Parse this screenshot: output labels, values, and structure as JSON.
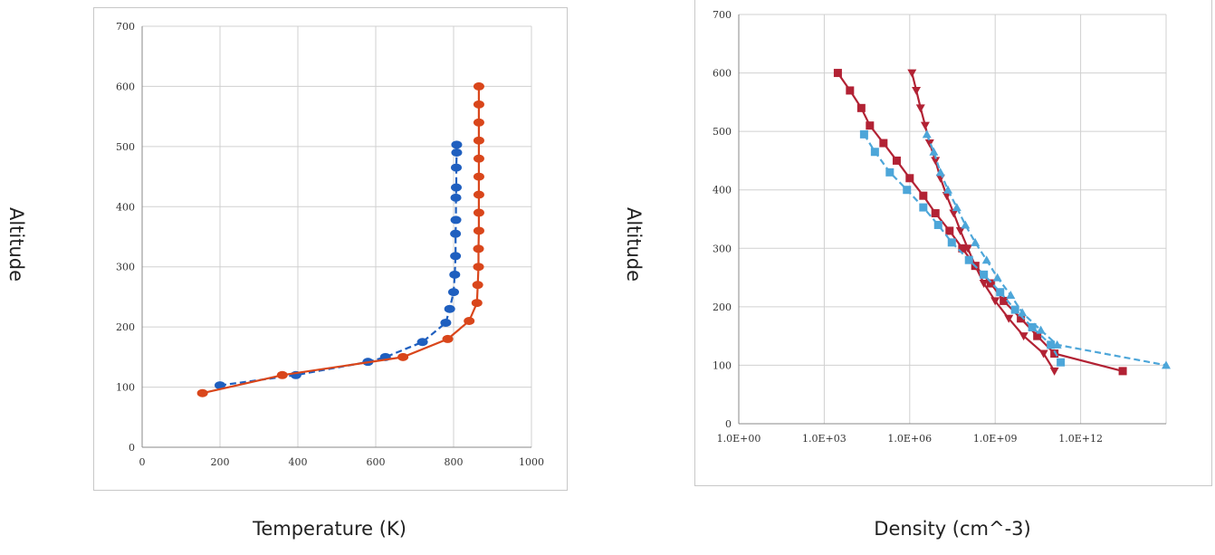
{
  "labels": {
    "left_ylabel": "Altitude",
    "left_xlabel": "Temperature (K)",
    "right_ylabel": "Altitude",
    "right_xlabel": "Density (cm^-3)"
  },
  "chart_data": [
    {
      "type": "line",
      "xlim": [
        0,
        1000
      ],
      "ylim": [
        0,
        700
      ],
      "x_ticks": [
        "0",
        "200",
        "400",
        "600",
        "800",
        "1000"
      ],
      "y_ticks": [
        "0",
        "100",
        "200",
        "300",
        "400",
        "500",
        "600",
        "700"
      ],
      "grid": true,
      "series": [
        {
          "color": "#1f5fbf",
          "style": "dashed",
          "marker": "circle",
          "points": [
            [
              200,
              103
            ],
            [
              395,
              120
            ],
            [
              580,
              142
            ],
            [
              625,
              150
            ],
            [
              720,
              175
            ],
            [
              780,
              207
            ],
            [
              790,
              230
            ],
            [
              800,
              258
            ],
            [
              803,
              287
            ],
            [
              805,
              318
            ],
            [
              805,
              355
            ],
            [
              806,
              378
            ],
            [
              806,
              415
            ],
            [
              807,
              432
            ],
            [
              807,
              465
            ],
            [
              808,
              490
            ],
            [
              808,
              503
            ]
          ]
        },
        {
          "color": "#d9461b",
          "style": "solid",
          "marker": "circle",
          "points": [
            [
              155,
              90
            ],
            [
              360,
              120
            ],
            [
              670,
              150
            ],
            [
              785,
              180
            ],
            [
              840,
              210
            ],
            [
              860,
              240
            ],
            [
              862,
              270
            ],
            [
              864,
              300
            ],
            [
              864,
              330
            ],
            [
              865,
              360
            ],
            [
              865,
              390
            ],
            [
              865,
              420
            ],
            [
              865,
              450
            ],
            [
              865,
              480
            ],
            [
              865,
              510
            ],
            [
              865,
              540
            ],
            [
              865,
              570
            ],
            [
              865,
              600
            ]
          ]
        }
      ]
    },
    {
      "type": "line",
      "x_scale": "log",
      "xlim": [
        1,
        1000000000000000
      ],
      "ylim": [
        0,
        700
      ],
      "x_ticks": [
        "1.0E+00",
        "1.0E+03",
        "1.0E+06",
        "1.0E+09",
        "1.0E+12"
      ],
      "y_ticks": [
        "0",
        "100",
        "200",
        "300",
        "400",
        "500",
        "600",
        "700"
      ],
      "grid": true,
      "series": [
        {
          "color": "#b22234",
          "style": "solid",
          "marker": "square",
          "points": [
            [
              3000,
              600
            ],
            [
              8000,
              570
            ],
            [
              20000,
              540
            ],
            [
              40000,
              510
            ],
            [
              120000,
              480
            ],
            [
              350000,
              450
            ],
            [
              1000000,
              420
            ],
            [
              3000000,
              390
            ],
            [
              8000000,
              360
            ],
            [
              25000000,
              330
            ],
            [
              70000000,
              300
            ],
            [
              200000000,
              270
            ],
            [
              700000000,
              240
            ],
            [
              2000000000,
              210
            ],
            [
              8000000000,
              180
            ],
            [
              30000000000,
              150
            ],
            [
              120000000000,
              120
            ],
            [
              30000000000000,
              90
            ]
          ]
        },
        {
          "color": "#b22234",
          "style": "solid",
          "marker": "triangle-down",
          "points": [
            [
              1200000,
              600
            ],
            [
              1700000,
              570
            ],
            [
              2400000,
              540
            ],
            [
              3500000,
              510
            ],
            [
              5000000,
              480
            ],
            [
              8000000,
              450
            ],
            [
              12000000,
              420
            ],
            [
              20000000,
              390
            ],
            [
              35000000,
              360
            ],
            [
              60000000,
              330
            ],
            [
              110000000,
              300
            ],
            [
              200000000,
              270
            ],
            [
              400000000,
              240
            ],
            [
              1000000000,
              210
            ],
            [
              3000000000,
              180
            ],
            [
              10000000000,
              150
            ],
            [
              50000000000,
              120
            ],
            [
              120000000000,
              90
            ]
          ]
        },
        {
          "color": "#4da6d9",
          "style": "dashed",
          "marker": "square",
          "points": [
            [
              25000,
              495
            ],
            [
              60000,
              465
            ],
            [
              200000,
              430
            ],
            [
              800000,
              400
            ],
            [
              3000000,
              370
            ],
            [
              10000000,
              340
            ],
            [
              30000000,
              310
            ],
            [
              120000000,
              280
            ],
            [
              400000000,
              255
            ],
            [
              1500000000,
              225
            ],
            [
              5000000000,
              195
            ],
            [
              20000000000,
              165
            ],
            [
              90000000000,
              135
            ],
            [
              200000000000,
              105
            ]
          ]
        },
        {
          "color": "#4da6d9",
          "style": "dashed",
          "marker": "triangle",
          "points": [
            [
              4000000,
              495
            ],
            [
              7000000,
              465
            ],
            [
              12000000,
              430
            ],
            [
              22000000,
              400
            ],
            [
              45000000,
              370
            ],
            [
              90000000,
              340
            ],
            [
              200000000,
              310
            ],
            [
              500000000,
              280
            ],
            [
              1200000000,
              250
            ],
            [
              3500000000,
              220
            ],
            [
              9000000000,
              190
            ],
            [
              40000000000,
              160
            ],
            [
              150000000000,
              135
            ],
            [
              1000000000000000,
              100
            ]
          ]
        }
      ]
    }
  ]
}
